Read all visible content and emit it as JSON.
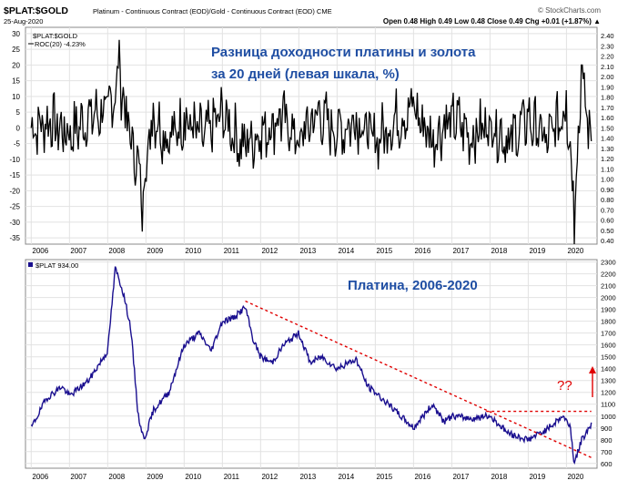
{
  "header": {
    "symbol": "$PLAT:$GOLD",
    "description": "Platinum - Continuous Contract (EOD)/Gold - Continuous Contract (EOD)  CME",
    "date": "25-Aug-2020",
    "watermark": "© StockCharts.com",
    "quote": "Open 0.48  High 0.49  Low 0.48  Close 0.49  Chg +0.01 (+1.87%) ▲"
  },
  "top_legend": {
    "line1": "$PLAT:$GOLD",
    "line2": "ROC(20) -4.23%"
  },
  "bottom_legend": {
    "line1": "$PLAT 934.00"
  },
  "annotations": {
    "top_title_line1": "Разница доходности платины и золота",
    "top_title_line2": "за 20 дней (левая шкала, %)",
    "bottom_title": "Платина, 2006-2020",
    "question": "??"
  },
  "colors": {
    "roc_line": "#000000",
    "price_line": "#1a0f8f",
    "annotation": "#1f4ea3",
    "dashed": "#e00000",
    "question": "#e00000"
  },
  "chart_data": [
    {
      "type": "line",
      "title": "Разница доходности платины и золота за 20 дней (левая шкала, %)",
      "series": [
        {
          "name": "ROC(20)",
          "values_note_x": "year",
          "x": [
            2006,
            2006.5,
            2007,
            2007.5,
            2008,
            2008.3,
            2008.6,
            2008.9,
            2009.2,
            2009.6,
            2010,
            2010.5,
            2011,
            2011.5,
            2012,
            2012.5,
            2013,
            2013.5,
            2014,
            2014.5,
            2015,
            2015.5,
            2016,
            2016.5,
            2017,
            2017.5,
            2018,
            2018.5,
            2019,
            2019.5,
            2020,
            2020.2,
            2020.4,
            2020.65
          ],
          "values": [
            0,
            3,
            -4,
            6,
            10,
            28,
            -5,
            -33,
            8,
            -8,
            5,
            -6,
            8,
            -10,
            -4,
            6,
            -6,
            8,
            -3,
            5,
            -8,
            4,
            10,
            -6,
            7,
            -5,
            3,
            -7,
            5,
            -8,
            12,
            -37,
            20,
            -4.23
          ]
        }
      ],
      "left_axis": {
        "ticks": [
          30,
          25,
          20,
          15,
          10,
          5,
          0,
          -5,
          -10,
          -15,
          -20,
          -25,
          -30,
          -35
        ],
        "ylim": [
          -37,
          32
        ]
      },
      "right_axis": {
        "ticks": [
          "2.40",
          "2.30",
          "2.20",
          "2.10",
          "2.00",
          "1.90",
          "1.80",
          "1.70",
          "1.60",
          "1.50",
          "1.40",
          "1.30",
          "1.20",
          "1.10",
          "1.00",
          "0.90",
          "0.80",
          "0.70",
          "0.60",
          "0.50",
          "0.40"
        ]
      },
      "x_ticks": [
        "2006",
        "2007",
        "2008",
        "2009",
        "2010",
        "2011",
        "2012",
        "2013",
        "2014",
        "2015",
        "2016",
        "2017",
        "2018",
        "2019",
        "2020"
      ],
      "grid": true
    },
    {
      "type": "line",
      "title": "Платина, 2006-2020",
      "series": [
        {
          "name": "$PLAT",
          "x": [
            2006,
            2006.4,
            2006.8,
            2007,
            2007.5,
            2008,
            2008.2,
            2008.4,
            2008.6,
            2008.8,
            2008.95,
            2009.2,
            2009.6,
            2010,
            2010.4,
            2010.7,
            2011,
            2011.3,
            2011.6,
            2011.8,
            2012,
            2012.3,
            2012.6,
            2013,
            2013.3,
            2013.6,
            2014,
            2014.5,
            2014.8,
            2015,
            2015.5,
            2016,
            2016.5,
            2016.8,
            2017,
            2017.5,
            2018,
            2018.5,
            2019,
            2019.5,
            2019.9,
            2020.1,
            2020.2,
            2020.4,
            2020.65
          ],
          "values": [
            900,
            1150,
            1250,
            1170,
            1300,
            1550,
            2250,
            2050,
            1750,
            1000,
            800,
            1050,
            1200,
            1600,
            1700,
            1550,
            1800,
            1830,
            1920,
            1650,
            1500,
            1450,
            1600,
            1700,
            1450,
            1500,
            1400,
            1480,
            1250,
            1200,
            1050,
            900,
            1100,
            950,
            1000,
            980,
            1000,
            850,
            800,
            890,
            1000,
            920,
            600,
            800,
            934
          ]
        }
      ],
      "right_axis": {
        "ticks": [
          2300,
          2200,
          2100,
          2000,
          1900,
          1800,
          1700,
          1600,
          1500,
          1400,
          1300,
          1200,
          1100,
          1000,
          900,
          800,
          700,
          600
        ],
        "ylim": [
          560,
          2320
        ]
      },
      "x_ticks": [
        "2006",
        "2007",
        "2008",
        "2009",
        "2010",
        "2011",
        "2012",
        "2013",
        "2014",
        "2015",
        "2016",
        "2017",
        "2018",
        "2019",
        "2020"
      ],
      "trend_lines": [
        {
          "style": "dashed",
          "from": [
            2011.6,
            1970
          ],
          "to": [
            2020.65,
            650
          ]
        },
        {
          "style": "dashed",
          "from": [
            2017.9,
            1040
          ],
          "to": [
            2020.65,
            1040
          ]
        }
      ],
      "grid": true
    }
  ]
}
